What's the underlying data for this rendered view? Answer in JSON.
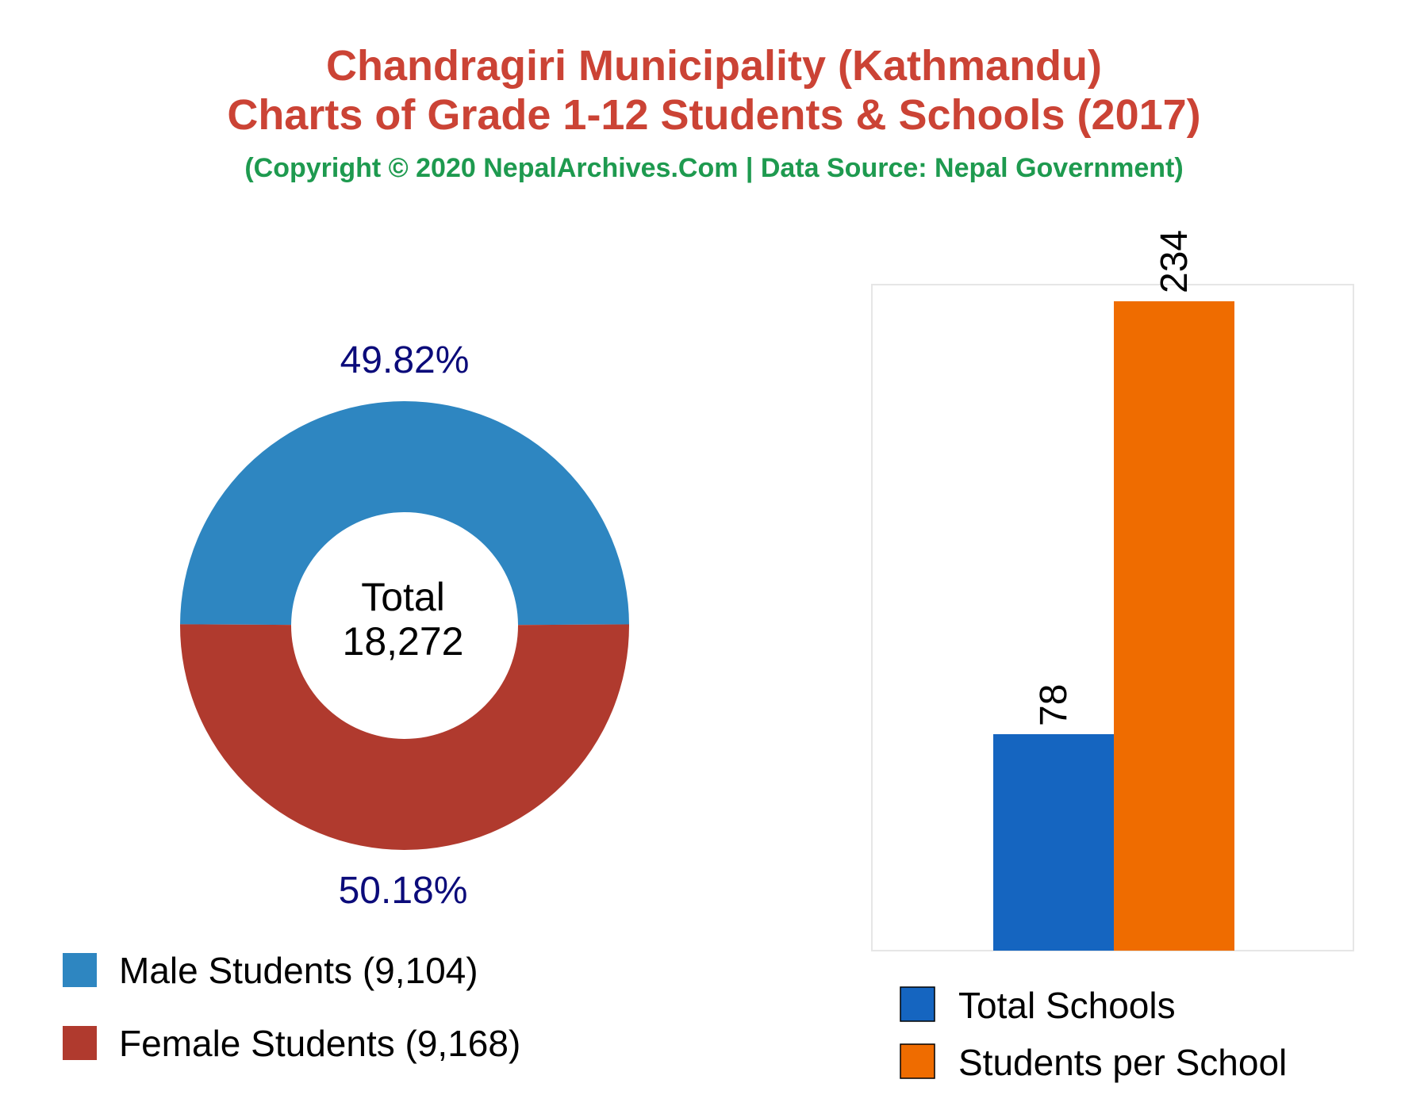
{
  "header": {
    "title_line1": "Chandragiri Municipality (Kathmandu)",
    "title_line2": "Charts of Grade 1-12 Students & Schools (2017)",
    "subtitle": "(Copyright © 2020 NepalArchives.Com | Data Source: Nepal Government)"
  },
  "chart_data": [
    {
      "type": "pie",
      "style": "donut",
      "center_label": "Total",
      "center_value": "18,272",
      "slices": [
        {
          "label": "Male Students (9,104)",
          "value": 9104,
          "percent_label": "49.82%",
          "color": "#2e86c1"
        },
        {
          "label": "Female Students (9,168)",
          "value": 9168,
          "percent_label": "50.18%",
          "color": "#b03a2e"
        }
      ],
      "label_color": "#0b0b7a",
      "legend_position": "bottom-left"
    },
    {
      "type": "bar",
      "categories": [
        "Total Schools",
        "Students per School"
      ],
      "values": [
        78,
        234
      ],
      "value_labels": [
        "78",
        "234"
      ],
      "colors": [
        "#1565c0",
        "#ef6c00"
      ],
      "ylim": [
        0,
        240
      ],
      "grid": false,
      "legend_position": "bottom"
    }
  ]
}
